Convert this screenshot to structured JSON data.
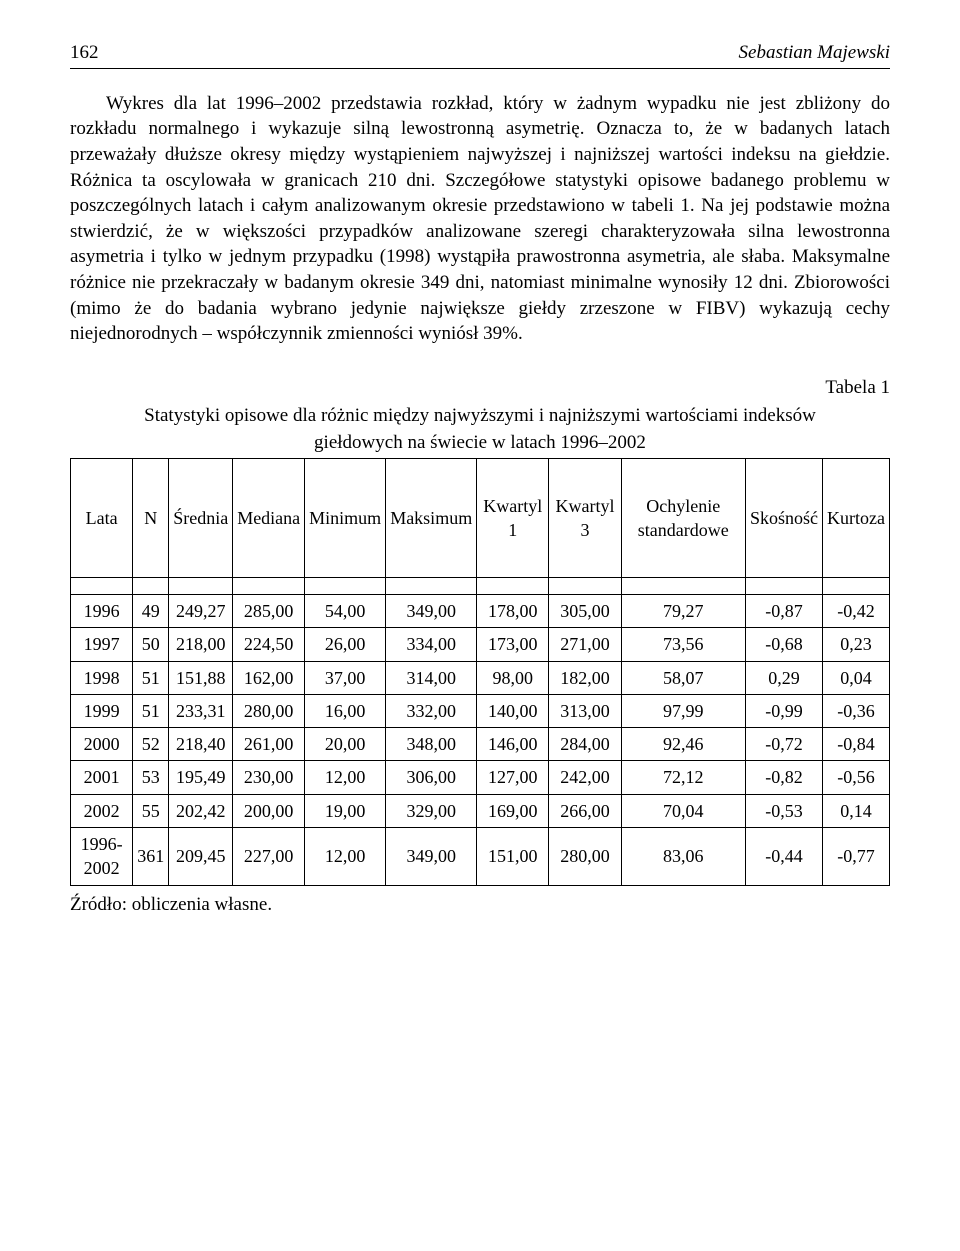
{
  "header": {
    "page_number": "162",
    "author": "Sebastian Majewski"
  },
  "paragraph": "Wykres dla lat 1996–2002 przedstawia rozkład, który w żadnym wypadku nie jest zbliżony do rozkładu normalnego i wykazuje silną lewostronną asymetrię. Oznacza to, że w badanych latach przeważały dłuższe okresy między wystąpieniem najwyższej i najniższej wartości indeksu na giełdzie. Różnica ta oscylowała w granicach 210 dni. Szczegółowe statystyki opisowe badanego problemu w poszczególnych latach i całym analizowanym okresie przedstawiono w tabeli 1. Na jej podstawie można stwierdzić, że w większości przypadków analizowane szeregi charakteryzowała silna lewostronna asymetria i tylko w jednym przypadku (1998) wystąpiła prawostronna asymetria, ale słaba. Maksymalne różnice nie przekraczały w badanym okresie 349 dni, natomiast minimalne wynosiły 12 dni. Zbiorowości (mimo że do badania wybrano jedynie największe giełdy zrzeszone w FIBV) wykazują cechy niejednorodnych – współczynnik zmienności wyniósł 39%.",
  "table": {
    "label": "Tabela 1",
    "title_line1": "Statystyki opisowe dla różnic między najwyższymi i najniższymi wartościami indeksów",
    "title_line2": "giełdowych na świecie w latach 1996–2002",
    "columns": [
      "Lata",
      "N",
      "Średnia",
      "Mediana",
      "Minimum",
      "Maksimum",
      "Kwartyl 1",
      "Kwartyl 3",
      "Ochylenie standardowe",
      "Skośność",
      "Kurtoza"
    ],
    "rows": [
      [
        "1996",
        "49",
        "249,27",
        "285,00",
        "54,00",
        "349,00",
        "178,00",
        "305,00",
        "79,27",
        "-0,87",
        "-0,42"
      ],
      [
        "1997",
        "50",
        "218,00",
        "224,50",
        "26,00",
        "334,00",
        "173,00",
        "271,00",
        "73,56",
        "-0,68",
        "0,23"
      ],
      [
        "1998",
        "51",
        "151,88",
        "162,00",
        "37,00",
        "314,00",
        "98,00",
        "182,00",
        "58,07",
        "0,29",
        "0,04"
      ],
      [
        "1999",
        "51",
        "233,31",
        "280,00",
        "16,00",
        "332,00",
        "140,00",
        "313,00",
        "97,99",
        "-0,99",
        "-0,36"
      ],
      [
        "2000",
        "52",
        "218,40",
        "261,00",
        "20,00",
        "348,00",
        "146,00",
        "284,00",
        "92,46",
        "-0,72",
        "-0,84"
      ],
      [
        "2001",
        "53",
        "195,49",
        "230,00",
        "12,00",
        "306,00",
        "127,00",
        "242,00",
        "72,12",
        "-0,82",
        "-0,56"
      ],
      [
        "2002",
        "55",
        "202,42",
        "200,00",
        "19,00",
        "329,00",
        "169,00",
        "266,00",
        "70,04",
        "-0,53",
        "0,14"
      ],
      [
        "1996-2002",
        "361",
        "209,45",
        "227,00",
        "12,00",
        "349,00",
        "151,00",
        "280,00",
        "83,06",
        "-0,44",
        "-0,77"
      ]
    ],
    "source": "Źródło: obliczenia własne."
  }
}
